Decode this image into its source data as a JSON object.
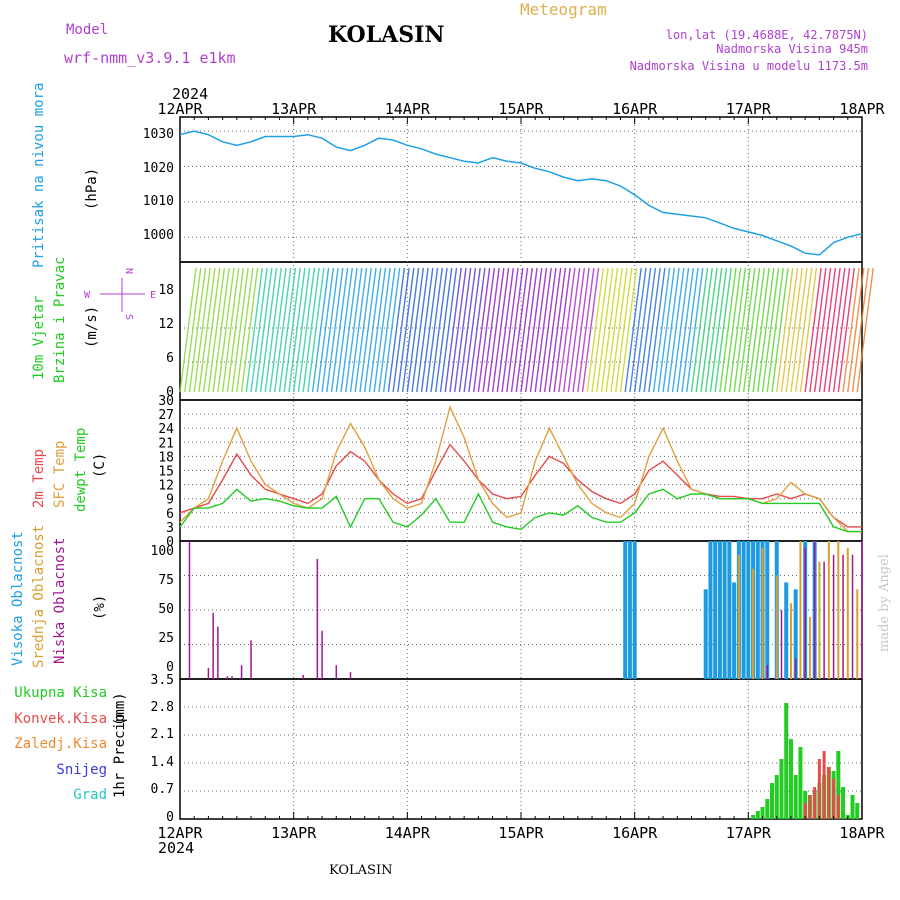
{
  "header": {
    "model_label": "Model",
    "model_name": "wrf-nmm_v3.9.1  e1km",
    "station": "KOLASIN",
    "product": "Meteogram",
    "lonlat": "lon,lat (19.4688E, 42.7875N)",
    "elevation": "Nadmorska Visina 945m",
    "model_elevation": "Nadmorska Visina u modelu 1173.5m",
    "year": "2024",
    "footer_station": "KOLASIN",
    "credit": "made by Angel"
  },
  "colors": {
    "pressure": "#1ea0e6",
    "temp2m": "#e84a4a",
    "sfc": "#e0a040",
    "dew": "#22cc22",
    "high_cloud": "#1e9be0",
    "mid_cloud": "#d9a030",
    "low_cloud": "#a01890",
    "total_precip": "#22cc22",
    "conv_precip": "#e84a4a",
    "frozen_precip": "#f08a30",
    "snow": "#3a3ae0",
    "graupel": "#22c8c0",
    "wind_label": "#22cc22",
    "dir_label": "#b040d0"
  },
  "time_axis": {
    "top_labels": [
      "12APR",
      "13APR",
      "14APR",
      "15APR",
      "16APR",
      "17APR",
      "18APR"
    ],
    "bottom_labels": [
      "12APR",
      "13APR",
      "14APR",
      "15APR",
      "16APR",
      "17APR",
      "18APR"
    ]
  },
  "panels": {
    "pressure": {
      "label": "Pritisak na nivou mora",
      "unit": "(hPa)",
      "ticks": [
        "1030",
        "1020",
        "1010",
        "1000"
      ]
    },
    "wind": {
      "label_line1": "10m Vjetar",
      "label_line2": "Brzina i Pravac",
      "unit": "(m/s)",
      "ticks": [
        "18",
        "12",
        "6",
        "0"
      ],
      "compass_n": "N",
      "compass_s": "S",
      "compass_w": "W",
      "compass_e": "E"
    },
    "temperature": {
      "label_2m": "2m Temp",
      "label_sfc": "SFC Temp",
      "label_dew": "dewpt Temp",
      "unit": "(C)",
      "ticks": [
        "30",
        "27",
        "24",
        "21",
        "18",
        "15",
        "12",
        "9",
        "6",
        "3",
        "0"
      ]
    },
    "cloud": {
      "label_high": "Visoka Oblacnost",
      "label_mid": "Srednja Oblacnost",
      "label_low": "Niska Oblacnost",
      "unit": "(%)",
      "ticks": [
        "100",
        "75",
        "50",
        "25",
        "0"
      ]
    },
    "precip": {
      "legend": [
        "Ukupna Kisa",
        "Konvek.Kisa",
        "Zaledj.Kisa",
        "Snijeg",
        "Grad"
      ],
      "label": "1hr Precip",
      "unit": "(mm)",
      "ticks": [
        "3.5",
        "2.8",
        "2.1",
        "1.4",
        "0.7",
        "0"
      ]
    }
  },
  "chart_data": [
    {
      "type": "line",
      "name": "sea-level-pressure",
      "x_unit": "hours from 12APR 00",
      "ylim": [
        993,
        1034
      ],
      "x": [
        0,
        3,
        6,
        9,
        12,
        15,
        18,
        21,
        24,
        27,
        30,
        33,
        36,
        39,
        42,
        45,
        48,
        51,
        54,
        57,
        60,
        63,
        66,
        69,
        72,
        75,
        78,
        81,
        84,
        87,
        90,
        93,
        96,
        99,
        102,
        105,
        108,
        111,
        114,
        117,
        120,
        123,
        126,
        129,
        132,
        135,
        138,
        141,
        144
      ],
      "values": [
        1029,
        1030,
        1029,
        1027,
        1026,
        1027,
        1028.5,
        1028.5,
        1028.5,
        1029,
        1028,
        1025.5,
        1024.5,
        1026,
        1028,
        1027.5,
        1026,
        1025,
        1023.5,
        1022.5,
        1021.5,
        1021,
        1022.5,
        1021.5,
        1021,
        1019.5,
        1018.5,
        1017,
        1016,
        1016.5,
        1016,
        1014.5,
        1012,
        1009,
        1007,
        1006.5,
        1006,
        1005.5,
        1004,
        1002.5,
        1001.5,
        1000.5,
        999,
        997.5,
        995.5,
        995,
        998.5,
        1000,
        1001
      ]
    },
    {
      "type": "line",
      "name": "temperature",
      "x_unit": "hours from 12APR 00",
      "ylim": [
        0,
        30
      ],
      "x": [
        0,
        3,
        6,
        9,
        12,
        15,
        18,
        21,
        24,
        27,
        30,
        33,
        36,
        39,
        42,
        45,
        48,
        51,
        54,
        57,
        60,
        63,
        66,
        69,
        72,
        75,
        78,
        81,
        84,
        87,
        90,
        93,
        96,
        99,
        102,
        105,
        108,
        111,
        114,
        117,
        120,
        123,
        126,
        129,
        132,
        135,
        138,
        141,
        144
      ],
      "series": [
        {
          "name": "2m Temp",
          "values": [
            6,
            7,
            8,
            13,
            18.5,
            14,
            11,
            10,
            9,
            8,
            10,
            16,
            19,
            17,
            13,
            10,
            8,
            9,
            15,
            20.5,
            17,
            13,
            10,
            9,
            9.5,
            14,
            18,
            16.5,
            13,
            10.5,
            9,
            8,
            10,
            15,
            17,
            14,
            11,
            10,
            9.5,
            9.5,
            9,
            9,
            10,
            9,
            10,
            9,
            5,
            3,
            3
          ]
        },
        {
          "name": "SFC Temp",
          "values": [
            4,
            7,
            9,
            17,
            24,
            17,
            12,
            10,
            8,
            7,
            9,
            19,
            25,
            20,
            13,
            9,
            7,
            8,
            17,
            28.5,
            22,
            13,
            8,
            5,
            6,
            17,
            24,
            18,
            12,
            8,
            6,
            5,
            8,
            18,
            24,
            17,
            11,
            10,
            9,
            9,
            9,
            8,
            9,
            12.5,
            10,
            9,
            5,
            2,
            2
          ]
        },
        {
          "name": "dewpt Temp",
          "values": [
            3,
            7,
            7,
            8,
            11,
            8.5,
            9,
            8.5,
            7.5,
            7,
            7,
            9.5,
            3,
            9,
            9,
            4,
            3,
            5.5,
            9,
            4,
            4,
            10,
            4,
            3,
            2.5,
            5,
            6,
            5.5,
            7.5,
            5,
            4,
            4,
            6,
            10,
            11,
            9,
            10,
            10,
            9,
            9,
            9,
            8,
            8,
            8,
            8,
            8,
            3,
            2,
            2
          ]
        }
      ]
    },
    {
      "type": "bar",
      "name": "cloud-cover",
      "x_unit": "hours from 12APR 00",
      "ylim": [
        0,
        100
      ],
      "series": [
        {
          "name": "Visoka Oblacnost",
          "x": [
            94,
            95,
            96,
            111,
            112,
            113,
            114,
            115,
            116,
            117,
            118,
            119,
            120,
            121,
            122,
            123,
            124,
            126,
            128,
            130,
            132,
            134
          ],
          "values": [
            100,
            100,
            100,
            65,
            100,
            100,
            100,
            100,
            100,
            70,
            100,
            100,
            100,
            100,
            100,
            100,
            100,
            100,
            70,
            65,
            100,
            100
          ]
        },
        {
          "name": "Srednja Oblacnost",
          "x": [
            118,
            121,
            123,
            126,
            129,
            131,
            133,
            135,
            137,
            139,
            141,
            143
          ],
          "values": [
            90,
            80,
            95,
            75,
            55,
            100,
            45,
            85,
            100,
            100,
            95,
            65
          ]
        },
        {
          "name": "Niska Oblacnost",
          "x": [
            2,
            6,
            7,
            8,
            10,
            11,
            13,
            15,
            26,
            29,
            30,
            33,
            36,
            124,
            127,
            130,
            132,
            134,
            136,
            138,
            140,
            142,
            144
          ],
          "values": [
            100,
            8,
            48,
            38,
            2,
            2,
            10,
            28,
            3,
            87,
            35,
            10,
            5,
            10,
            50,
            15,
            95,
            100,
            85,
            90,
            90,
            90,
            100
          ]
        }
      ]
    },
    {
      "type": "bar",
      "name": "precipitation",
      "x_unit": "hours from 12APR 00",
      "ylim": [
        0,
        3.5
      ],
      "series": [
        {
          "name": "Ukupna Kisa",
          "x": [
            121,
            122,
            123,
            124,
            125,
            126,
            127,
            128,
            129,
            130,
            131,
            132,
            133,
            134,
            135,
            136,
            137,
            138,
            139,
            140,
            141,
            142,
            143
          ],
          "values": [
            0.1,
            0.2,
            0.3,
            0.5,
            0.9,
            1.1,
            1.5,
            2.9,
            2.0,
            1.1,
            1.8,
            0.7,
            0.6,
            0.7,
            0.9,
            1.1,
            1.3,
            1.2,
            1.7,
            0.8,
            0.1,
            0.6,
            0.4
          ]
        },
        {
          "name": "Konvek.Kisa",
          "x": [
            132,
            133,
            134,
            135,
            136,
            137,
            138,
            139
          ],
          "values": [
            0.4,
            0.6,
            0.8,
            1.5,
            1.7,
            1.3,
            1.0,
            0.6
          ]
        }
      ]
    }
  ]
}
